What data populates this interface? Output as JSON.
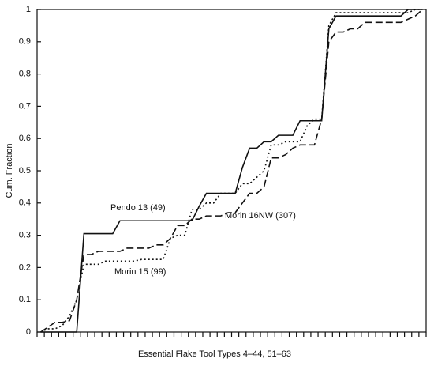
{
  "chart_data": {
    "type": "line",
    "xlabel": "Essential Flake Tool Types 4–44, 51–63",
    "ylabel": "Cum. Fraction",
    "categories": [
      null,
      null,
      null,
      null,
      null,
      null,
      null,
      null,
      null,
      null,
      null,
      null,
      null,
      null,
      null,
      null,
      null,
      null,
      null,
      null,
      null,
      null,
      null,
      null,
      null,
      null,
      null,
      null,
      null,
      null,
      null,
      null,
      null,
      null,
      null,
      null,
      null,
      null,
      null,
      null,
      null,
      null,
      null,
      null,
      null,
      null,
      null,
      null,
      null,
      null,
      null,
      null,
      null,
      null
    ],
    "ylim": [
      0,
      1
    ],
    "yticks": [
      0,
      0.1,
      0.2,
      0.3,
      0.4,
      0.5,
      0.6,
      0.7,
      0.8,
      0.9,
      1
    ],
    "grid": false,
    "series": [
      {
        "name": "Pendo 13 (49)",
        "color": "#111111",
        "dash": "solid",
        "values": [
          0,
          0,
          0,
          0,
          0,
          0,
          0.305,
          0.305,
          0.305,
          0.305,
          0.305,
          0.345,
          0.345,
          0.345,
          0.345,
          0.345,
          0.345,
          0.345,
          0.345,
          0.345,
          0.345,
          0.345,
          0.39,
          0.43,
          0.43,
          0.43,
          0.43,
          0.43,
          0.51,
          0.57,
          0.57,
          0.59,
          0.59,
          0.61,
          0.61,
          0.61,
          0.655,
          0.655,
          0.655,
          0.655,
          0.94,
          0.98,
          0.98,
          0.98,
          0.98,
          0.98,
          0.98,
          0.98,
          0.98,
          0.98,
          0.98,
          1,
          1,
          1
        ]
      },
      {
        "name": "Morin 16NW (307)",
        "color": "#111111",
        "dash": "dashed",
        "values": [
          0,
          0.015,
          0.03,
          0.03,
          0.035,
          0.1,
          0.24,
          0.24,
          0.25,
          0.25,
          0.25,
          0.25,
          0.26,
          0.26,
          0.26,
          0.26,
          0.27,
          0.27,
          0.29,
          0.33,
          0.33,
          0.35,
          0.35,
          0.36,
          0.36,
          0.36,
          0.37,
          0.37,
          0.4,
          0.43,
          0.43,
          0.45,
          0.54,
          0.54,
          0.55,
          0.57,
          0.58,
          0.58,
          0.58,
          0.66,
          0.9,
          0.93,
          0.93,
          0.94,
          0.94,
          0.96,
          0.96,
          0.96,
          0.96,
          0.96,
          0.96,
          0.97,
          0.98,
          1
        ]
      },
      {
        "name": "Morin 15 (99)",
        "color": "#111111",
        "dash": "dotted",
        "values": [
          0,
          0.01,
          0.01,
          0.02,
          0.05,
          0.1,
          0.21,
          0.21,
          0.21,
          0.22,
          0.22,
          0.22,
          0.22,
          0.22,
          0.225,
          0.225,
          0.225,
          0.225,
          0.29,
          0.3,
          0.3,
          0.38,
          0.38,
          0.4,
          0.4,
          0.43,
          0.43,
          0.43,
          0.46,
          0.46,
          0.48,
          0.5,
          0.58,
          0.58,
          0.59,
          0.59,
          0.59,
          0.64,
          0.66,
          0.66,
          0.95,
          0.99,
          0.99,
          0.99,
          0.99,
          0.99,
          0.99,
          0.99,
          0.99,
          0.99,
          0.99,
          0.99,
          1,
          1
        ]
      }
    ]
  }
}
